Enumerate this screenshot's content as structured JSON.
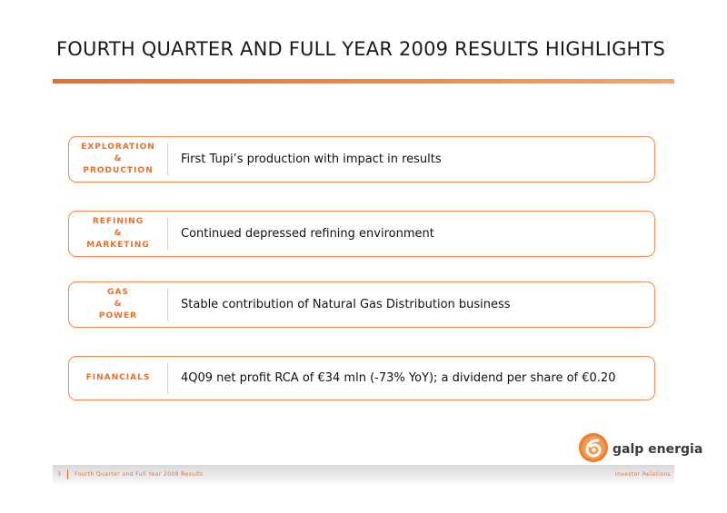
{
  "title": "FOURTH QUARTER AND FULL YEAR 2009 RESULTS HIGHLIGHTS",
  "highlights": [
    {
      "label_lines": [
        "EXPLORATION",
        "&",
        "PRODUCTION"
      ],
      "text": "First Tupi’s production with impact in results"
    },
    {
      "label_lines": [
        "REFINING",
        "&",
        "MARKETING"
      ],
      "text": "Continued depressed refining environment"
    },
    {
      "label_lines": [
        "GAS",
        "&",
        "POWER"
      ],
      "text": "Stable contribution of Natural Gas Distribution business"
    },
    {
      "label_lines": [
        "FINANCIALS"
      ],
      "text": "4Q09 net profit RCA of €34 mln (-73% YoY); a dividend per share of €0.20"
    }
  ],
  "logo": {
    "text": "galp energia",
    "icon": "galp-logo-icon"
  },
  "footer": {
    "page_number": "3",
    "title": "Fourth Quarter and Full Year 2009 Results",
    "right": "Investor Relations"
  },
  "colors": {
    "accent": "#e8702a",
    "border": "#f28a50"
  }
}
